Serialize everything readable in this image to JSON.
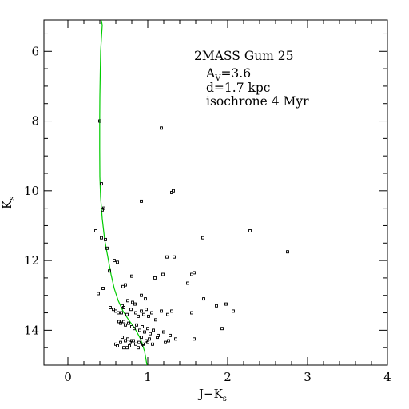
{
  "chart_data": {
    "type": "scatter",
    "title": "2MASS Gum 25",
    "xlabel": {
      "main": "J−K",
      "sub": "s"
    },
    "ylabel": {
      "main": "K",
      "sub": "s"
    },
    "xlim": [
      -0.3,
      4.0
    ],
    "ylim": [
      15.0,
      5.1
    ],
    "y_inverted": true,
    "grid": false,
    "x_ticks": [
      {
        "value": 0,
        "label": "0"
      },
      {
        "value": 1,
        "label": "1"
      },
      {
        "value": 2,
        "label": "2"
      },
      {
        "value": 3,
        "label": "3"
      },
      {
        "value": 4,
        "label": "4"
      }
    ],
    "y_ticks": [
      {
        "value": 6,
        "label": "6"
      },
      {
        "value": 8,
        "label": "8"
      },
      {
        "value": 10,
        "label": "10"
      },
      {
        "value": 12,
        "label": "12"
      },
      {
        "value": 14,
        "label": "14"
      }
    ],
    "annotations": [
      {
        "main": "A",
        "sub": "V",
        "rest": "=3.6"
      },
      {
        "main": "d=1.7 kpc",
        "sub": "",
        "rest": ""
      },
      {
        "main": "isochrone 4 Myr",
        "sub": "",
        "rest": ""
      }
    ],
    "isochrone": {
      "color": "#00cc00",
      "points": [
        [
          0.41,
          5.0
        ],
        [
          0.43,
          5.25
        ],
        [
          0.42,
          5.6
        ],
        [
          0.41,
          6.0
        ],
        [
          0.405,
          6.6
        ],
        [
          0.4,
          7.3
        ],
        [
          0.398,
          8.0
        ],
        [
          0.398,
          8.8
        ],
        [
          0.4,
          9.6
        ],
        [
          0.41,
          10.2
        ],
        [
          0.43,
          10.8
        ],
        [
          0.46,
          11.4
        ],
        [
          0.5,
          11.9
        ],
        [
          0.54,
          12.4
        ],
        [
          0.58,
          12.8
        ],
        [
          0.63,
          13.15
        ],
        [
          0.69,
          13.45
        ],
        [
          0.76,
          13.7
        ],
        [
          0.84,
          13.95
        ],
        [
          0.91,
          14.25
        ],
        [
          0.96,
          14.6
        ],
        [
          0.99,
          15.0
        ]
      ]
    },
    "series": [
      {
        "marker": "open-square",
        "color": "#000000",
        "x": [
          0.4,
          1.17,
          0.42,
          1.32,
          1.3,
          0.92,
          0.45,
          0.43,
          0.35,
          0.47,
          0.42,
          1.69,
          2.28,
          0.49,
          2.75,
          1.24,
          1.33,
          0.58,
          0.62,
          1.58,
          1.55,
          0.52,
          1.19,
          1.09,
          0.8,
          0.72,
          1.5,
          0.69,
          0.44,
          0.38,
          0.92,
          0.97,
          0.75,
          0.81,
          0.84,
          0.68,
          1.7,
          1.98,
          1.86,
          2.07,
          0.53,
          0.57,
          0.6,
          0.63,
          0.67,
          0.7,
          0.74,
          0.79,
          0.85,
          0.88,
          0.92,
          0.95,
          0.98,
          1.01,
          1.05,
          1.1,
          1.17,
          1.25,
          1.3,
          1.55,
          0.64,
          0.66,
          0.7,
          0.72,
          0.76,
          0.8,
          0.83,
          0.86,
          0.9,
          0.93,
          0.96,
          1.0,
          1.03,
          1.07,
          1.13,
          1.2,
          1.28,
          1.35,
          1.58,
          1.93,
          0.68,
          0.72,
          0.75,
          0.78,
          0.82,
          0.85,
          0.89,
          0.92,
          0.95,
          0.98,
          1.02,
          1.06,
          1.12,
          1.22,
          1.26,
          0.6,
          0.62,
          0.66,
          0.7,
          0.74,
          0.77,
          0.8,
          0.88,
          0.94,
          1.0
        ],
        "y": [
          8.0,
          8.2,
          9.8,
          10.0,
          10.05,
          10.3,
          10.5,
          10.55,
          11.15,
          11.4,
          11.35,
          11.35,
          11.15,
          11.65,
          11.75,
          11.9,
          11.9,
          12.0,
          12.05,
          12.35,
          12.4,
          12.3,
          12.4,
          12.5,
          12.45,
          12.7,
          12.65,
          12.75,
          12.8,
          12.95,
          13.0,
          13.1,
          13.15,
          13.2,
          13.25,
          13.3,
          13.1,
          13.25,
          13.3,
          13.45,
          13.35,
          13.4,
          13.45,
          13.5,
          13.5,
          13.35,
          13.55,
          13.4,
          13.5,
          13.6,
          13.45,
          13.55,
          13.4,
          13.6,
          13.5,
          13.7,
          13.45,
          13.55,
          13.45,
          13.5,
          13.75,
          13.8,
          13.75,
          13.85,
          13.8,
          13.9,
          13.95,
          13.85,
          14.0,
          13.9,
          14.05,
          13.95,
          14.1,
          14.0,
          14.15,
          14.05,
          14.15,
          14.25,
          14.25,
          13.95,
          14.2,
          14.3,
          14.25,
          14.35,
          14.3,
          14.4,
          14.35,
          14.2,
          14.45,
          14.3,
          14.25,
          14.4,
          14.2,
          14.35,
          14.3,
          14.4,
          14.45,
          14.35,
          14.5,
          14.5,
          14.45,
          14.3,
          14.5,
          14.4,
          14.35
        ]
      }
    ]
  }
}
